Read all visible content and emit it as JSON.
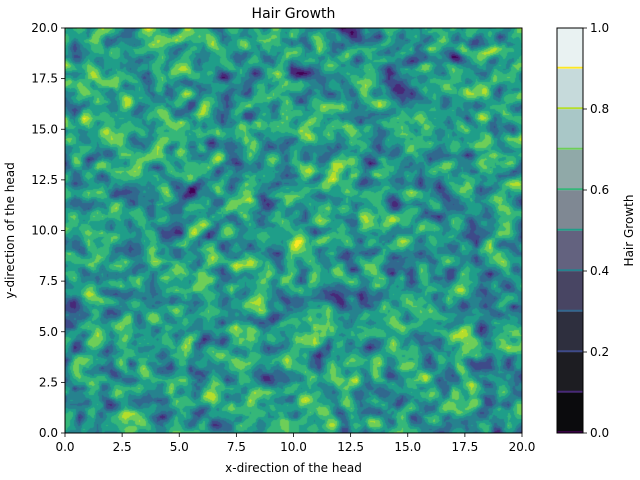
{
  "chart_data": {
    "type": "heatmap",
    "title": "Hair Growth",
    "xlabel": "x-direction of the head",
    "ylabel": "y-direction of the head",
    "xlim": [
      0,
      20
    ],
    "ylim": [
      0,
      20
    ],
    "x_ticks": [
      "0.0",
      "2.5",
      "5.0",
      "7.5",
      "10.0",
      "12.5",
      "15.0",
      "17.5",
      "20.0"
    ],
    "y_ticks": [
      "0.0",
      "2.5",
      "5.0",
      "7.5",
      "10.0",
      "12.5",
      "15.0",
      "17.5",
      "20.0"
    ],
    "grid": false,
    "colorbar": {
      "label": "Hair Growth",
      "range": [
        0,
        1
      ],
      "levels": [
        0.0,
        0.1,
        0.2,
        0.3,
        0.4,
        0.5,
        0.6,
        0.7,
        0.8,
        0.9,
        1.0
      ],
      "ticks": [
        "0.0",
        "0.2",
        "0.4",
        "0.6",
        "0.8",
        "1.0"
      ],
      "fill_colors": [
        "#0b0b0d",
        "#1d1d22",
        "#2e2f3e",
        "#484563",
        "#63627f",
        "#7f8893",
        "#90a9a8",
        "#a9c7c7",
        "#c6dadb",
        "#e9f2f2"
      ],
      "line_colors": [
        "#440154",
        "#482878",
        "#3e4a89",
        "#31688e",
        "#26828e",
        "#1f9e89",
        "#35b779",
        "#6ece58",
        "#b5de2b",
        "#fde725"
      ]
    },
    "field": {
      "description_grid": [
        100,
        100
      ],
      "value_range": [
        0,
        1
      ]
    }
  }
}
